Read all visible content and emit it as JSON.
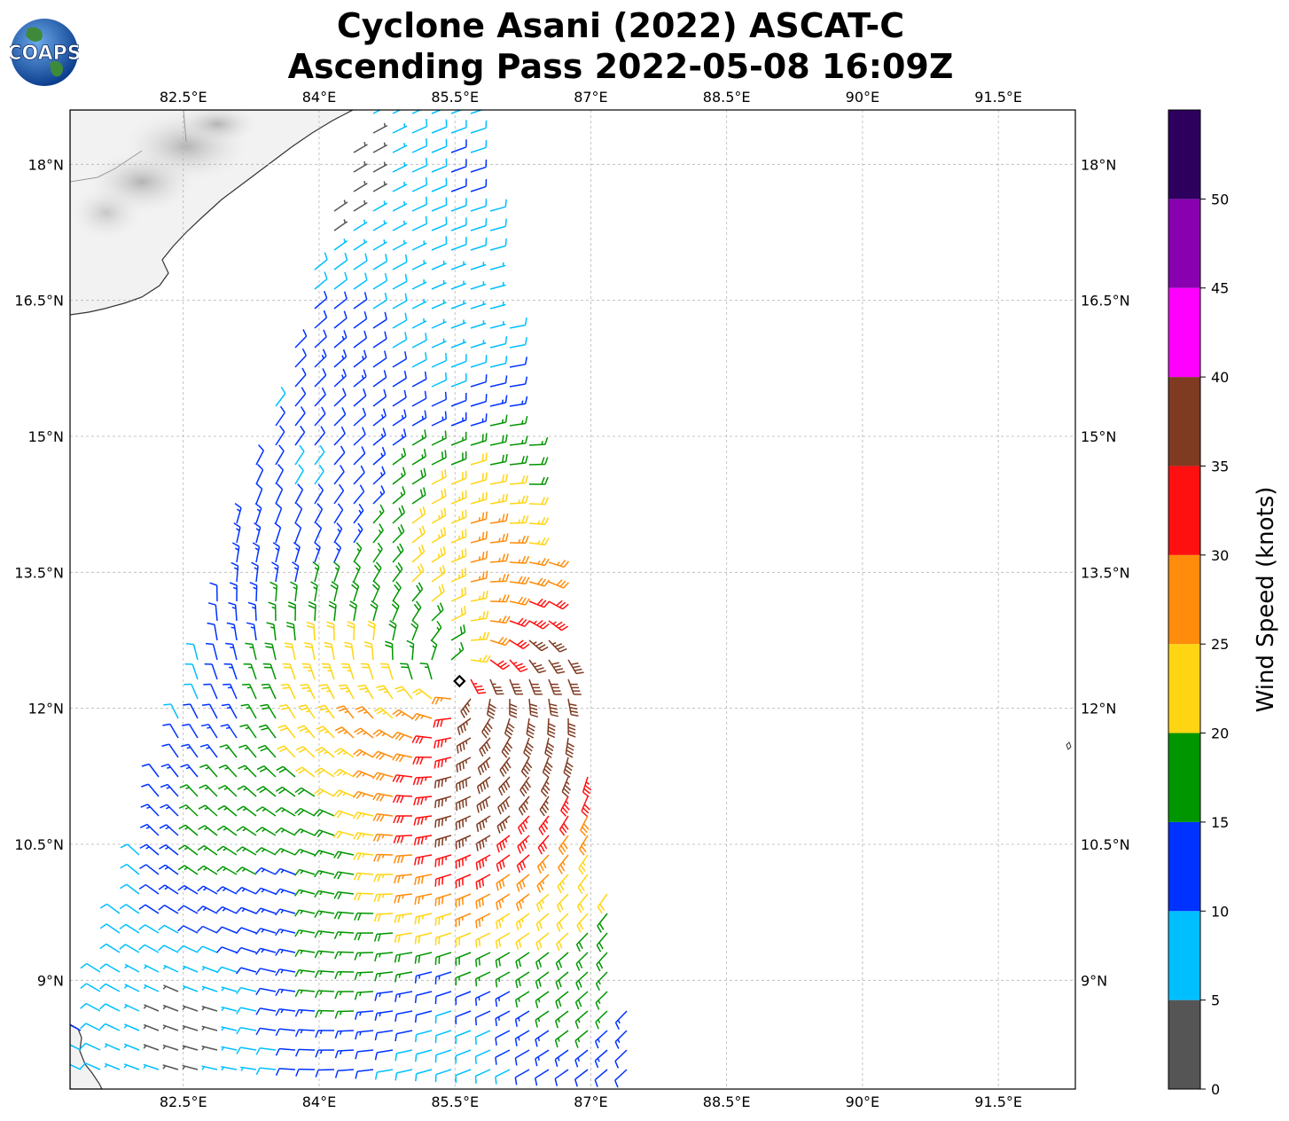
{
  "title": {
    "line1": "Cyclone Asani (2022) ASCAT-C",
    "line2": "Ascending Pass 2022-05-08 16:09Z"
  },
  "logo": {
    "text": "COAPS",
    "icon": "globe-icon"
  },
  "map": {
    "lon_range": [
      81.25,
      92.35
    ],
    "lat_range": [
      7.8,
      18.6
    ],
    "lon_ticks": [
      "82.5°E",
      "84°E",
      "85.5°E",
      "87°E",
      "88.5°E",
      "90°E",
      "91.5°E"
    ],
    "lon_tick_values": [
      82.5,
      84,
      85.5,
      87,
      88.5,
      90,
      91.5
    ],
    "lat_ticks": [
      "18°N",
      "16.5°N",
      "15°N",
      "13.5°N",
      "12°N",
      "10.5°N",
      "9°N"
    ],
    "lat_tick_values": [
      18,
      16.5,
      15,
      13.5,
      12,
      10.5,
      9
    ],
    "storm_center": {
      "lon": 85.55,
      "lat": 12.3,
      "icon": "storm-center-icon"
    }
  },
  "colorbar": {
    "label": "Wind Speed (knots)",
    "ticks": [
      "0",
      "5",
      "10",
      "15",
      "20",
      "25",
      "30",
      "35",
      "40",
      "45",
      "50"
    ],
    "bins": [
      {
        "min": 0,
        "max": 5,
        "color": "#555555"
      },
      {
        "min": 5,
        "max": 10,
        "color": "#00bfff"
      },
      {
        "min": 10,
        "max": 15,
        "color": "#0032ff"
      },
      {
        "min": 15,
        "max": 20,
        "color": "#009600"
      },
      {
        "min": 20,
        "max": 25,
        "color": "#ffd513"
      },
      {
        "min": 25,
        "max": 30,
        "color": "#ff8c0a"
      },
      {
        "min": 30,
        "max": 35,
        "color": "#ff1010"
      },
      {
        "min": 35,
        "max": 40,
        "color": "#7f3b22"
      },
      {
        "min": 40,
        "max": 45,
        "color": "#ff00ff"
      },
      {
        "min": 45,
        "max": 50,
        "color": "#8800b0"
      },
      {
        "min": 50,
        "max": 55,
        "color": "#2d005e"
      }
    ]
  }
}
